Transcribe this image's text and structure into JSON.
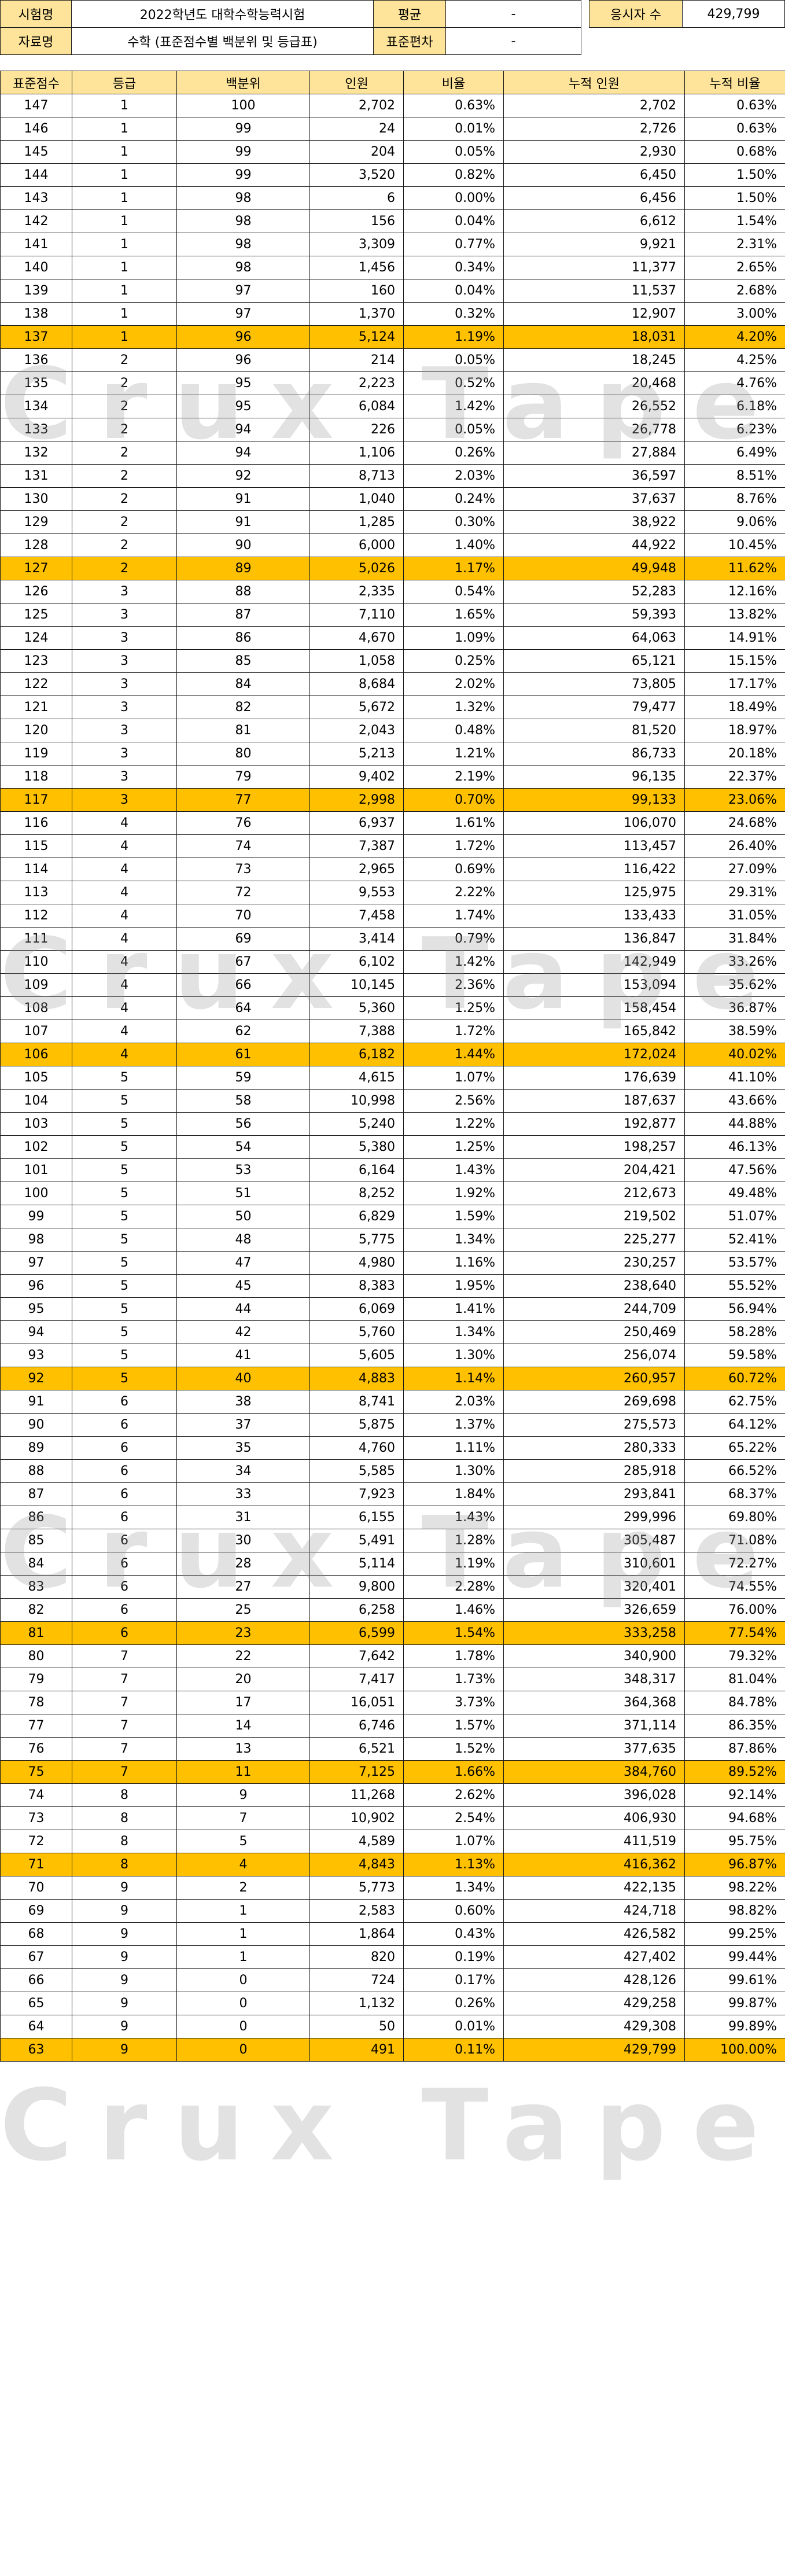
{
  "info": {
    "exam_label": "시험명",
    "exam_value": "2022학년도 대학수학능력시험",
    "mean_label": "평균",
    "mean_value": "-",
    "count_label": "응시자 수",
    "count_value": "429,799",
    "data_label": "자료명",
    "data_value": "수학 (표준점수별 백분위 및 등급표)",
    "sd_label": "표준편차",
    "sd_value": "-"
  },
  "watermark": "Crux Tape",
  "table": {
    "headers": [
      "표준점수",
      "등급",
      "백분위",
      "인원",
      "비율",
      "누적 인원",
      "누적 비율"
    ],
    "rows": [
      [
        "147",
        "1",
        "100",
        "2,702",
        "0.63%",
        "2,702",
        "0.63%"
      ],
      [
        "146",
        "1",
        "99",
        "24",
        "0.01%",
        "2,726",
        "0.63%"
      ],
      [
        "145",
        "1",
        "99",
        "204",
        "0.05%",
        "2,930",
        "0.68%"
      ],
      [
        "144",
        "1",
        "99",
        "3,520",
        "0.82%",
        "6,450",
        "1.50%"
      ],
      [
        "143",
        "1",
        "98",
        "6",
        "0.00%",
        "6,456",
        "1.50%"
      ],
      [
        "142",
        "1",
        "98",
        "156",
        "0.04%",
        "6,612",
        "1.54%"
      ],
      [
        "141",
        "1",
        "98",
        "3,309",
        "0.77%",
        "9,921",
        "2.31%"
      ],
      [
        "140",
        "1",
        "98",
        "1,456",
        "0.34%",
        "11,377",
        "2.65%"
      ],
      [
        "139",
        "1",
        "97",
        "160",
        "0.04%",
        "11,537",
        "2.68%"
      ],
      [
        "138",
        "1",
        "97",
        "1,370",
        "0.32%",
        "12,907",
        "3.00%"
      ],
      [
        "137",
        "1",
        "96",
        "5,124",
        "1.19%",
        "18,031",
        "4.20%"
      ],
      [
        "136",
        "2",
        "96",
        "214",
        "0.05%",
        "18,245",
        "4.25%"
      ],
      [
        "135",
        "2",
        "95",
        "2,223",
        "0.52%",
        "20,468",
        "4.76%"
      ],
      [
        "134",
        "2",
        "95",
        "6,084",
        "1.42%",
        "26,552",
        "6.18%"
      ],
      [
        "133",
        "2",
        "94",
        "226",
        "0.05%",
        "26,778",
        "6.23%"
      ],
      [
        "132",
        "2",
        "94",
        "1,106",
        "0.26%",
        "27,884",
        "6.49%"
      ],
      [
        "131",
        "2",
        "92",
        "8,713",
        "2.03%",
        "36,597",
        "8.51%"
      ],
      [
        "130",
        "2",
        "91",
        "1,040",
        "0.24%",
        "37,637",
        "8.76%"
      ],
      [
        "129",
        "2",
        "91",
        "1,285",
        "0.30%",
        "38,922",
        "9.06%"
      ],
      [
        "128",
        "2",
        "90",
        "6,000",
        "1.40%",
        "44,922",
        "10.45%"
      ],
      [
        "127",
        "2",
        "89",
        "5,026",
        "1.17%",
        "49,948",
        "11.62%"
      ],
      [
        "126",
        "3",
        "88",
        "2,335",
        "0.54%",
        "52,283",
        "12.16%"
      ],
      [
        "125",
        "3",
        "87",
        "7,110",
        "1.65%",
        "59,393",
        "13.82%"
      ],
      [
        "124",
        "3",
        "86",
        "4,670",
        "1.09%",
        "64,063",
        "14.91%"
      ],
      [
        "123",
        "3",
        "85",
        "1,058",
        "0.25%",
        "65,121",
        "15.15%"
      ],
      [
        "122",
        "3",
        "84",
        "8,684",
        "2.02%",
        "73,805",
        "17.17%"
      ],
      [
        "121",
        "3",
        "82",
        "5,672",
        "1.32%",
        "79,477",
        "18.49%"
      ],
      [
        "120",
        "3",
        "81",
        "2,043",
        "0.48%",
        "81,520",
        "18.97%"
      ],
      [
        "119",
        "3",
        "80",
        "5,213",
        "1.21%",
        "86,733",
        "20.18%"
      ],
      [
        "118",
        "3",
        "79",
        "9,402",
        "2.19%",
        "96,135",
        "22.37%"
      ],
      [
        "117",
        "3",
        "77",
        "2,998",
        "0.70%",
        "99,133",
        "23.06%"
      ],
      [
        "116",
        "4",
        "76",
        "6,937",
        "1.61%",
        "106,070",
        "24.68%"
      ],
      [
        "115",
        "4",
        "74",
        "7,387",
        "1.72%",
        "113,457",
        "26.40%"
      ],
      [
        "114",
        "4",
        "73",
        "2,965",
        "0.69%",
        "116,422",
        "27.09%"
      ],
      [
        "113",
        "4",
        "72",
        "9,553",
        "2.22%",
        "125,975",
        "29.31%"
      ],
      [
        "112",
        "4",
        "70",
        "7,458",
        "1.74%",
        "133,433",
        "31.05%"
      ],
      [
        "111",
        "4",
        "69",
        "3,414",
        "0.79%",
        "136,847",
        "31.84%"
      ],
      [
        "110",
        "4",
        "67",
        "6,102",
        "1.42%",
        "142,949",
        "33.26%"
      ],
      [
        "109",
        "4",
        "66",
        "10,145",
        "2.36%",
        "153,094",
        "35.62%"
      ],
      [
        "108",
        "4",
        "64",
        "5,360",
        "1.25%",
        "158,454",
        "36.87%"
      ],
      [
        "107",
        "4",
        "62",
        "7,388",
        "1.72%",
        "165,842",
        "38.59%"
      ],
      [
        "106",
        "4",
        "61",
        "6,182",
        "1.44%",
        "172,024",
        "40.02%"
      ],
      [
        "105",
        "5",
        "59",
        "4,615",
        "1.07%",
        "176,639",
        "41.10%"
      ],
      [
        "104",
        "5",
        "58",
        "10,998",
        "2.56%",
        "187,637",
        "43.66%"
      ],
      [
        "103",
        "5",
        "56",
        "5,240",
        "1.22%",
        "192,877",
        "44.88%"
      ],
      [
        "102",
        "5",
        "54",
        "5,380",
        "1.25%",
        "198,257",
        "46.13%"
      ],
      [
        "101",
        "5",
        "53",
        "6,164",
        "1.43%",
        "204,421",
        "47.56%"
      ],
      [
        "100",
        "5",
        "51",
        "8,252",
        "1.92%",
        "212,673",
        "49.48%"
      ],
      [
        "99",
        "5",
        "50",
        "6,829",
        "1.59%",
        "219,502",
        "51.07%"
      ],
      [
        "98",
        "5",
        "48",
        "5,775",
        "1.34%",
        "225,277",
        "52.41%"
      ],
      [
        "97",
        "5",
        "47",
        "4,980",
        "1.16%",
        "230,257",
        "53.57%"
      ],
      [
        "96",
        "5",
        "45",
        "8,383",
        "1.95%",
        "238,640",
        "55.52%"
      ],
      [
        "95",
        "5",
        "44",
        "6,069",
        "1.41%",
        "244,709",
        "56.94%"
      ],
      [
        "94",
        "5",
        "42",
        "5,760",
        "1.34%",
        "250,469",
        "58.28%"
      ],
      [
        "93",
        "5",
        "41",
        "5,605",
        "1.30%",
        "256,074",
        "59.58%"
      ],
      [
        "92",
        "5",
        "40",
        "4,883",
        "1.14%",
        "260,957",
        "60.72%"
      ],
      [
        "91",
        "6",
        "38",
        "8,741",
        "2.03%",
        "269,698",
        "62.75%"
      ],
      [
        "90",
        "6",
        "37",
        "5,875",
        "1.37%",
        "275,573",
        "64.12%"
      ],
      [
        "89",
        "6",
        "35",
        "4,760",
        "1.11%",
        "280,333",
        "65.22%"
      ],
      [
        "88",
        "6",
        "34",
        "5,585",
        "1.30%",
        "285,918",
        "66.52%"
      ],
      [
        "87",
        "6",
        "33",
        "7,923",
        "1.84%",
        "293,841",
        "68.37%"
      ],
      [
        "86",
        "6",
        "31",
        "6,155",
        "1.43%",
        "299,996",
        "69.80%"
      ],
      [
        "85",
        "6",
        "30",
        "5,491",
        "1.28%",
        "305,487",
        "71.08%"
      ],
      [
        "84",
        "6",
        "28",
        "5,114",
        "1.19%",
        "310,601",
        "72.27%"
      ],
      [
        "83",
        "6",
        "27",
        "9,800",
        "2.28%",
        "320,401",
        "74.55%"
      ],
      [
        "82",
        "6",
        "25",
        "6,258",
        "1.46%",
        "326,659",
        "76.00%"
      ],
      [
        "81",
        "6",
        "23",
        "6,599",
        "1.54%",
        "333,258",
        "77.54%"
      ],
      [
        "80",
        "7",
        "22",
        "7,642",
        "1.78%",
        "340,900",
        "79.32%"
      ],
      [
        "79",
        "7",
        "20",
        "7,417",
        "1.73%",
        "348,317",
        "81.04%"
      ],
      [
        "78",
        "7",
        "17",
        "16,051",
        "3.73%",
        "364,368",
        "84.78%"
      ],
      [
        "77",
        "7",
        "14",
        "6,746",
        "1.57%",
        "371,114",
        "86.35%"
      ],
      [
        "76",
        "7",
        "13",
        "6,521",
        "1.52%",
        "377,635",
        "87.86%"
      ],
      [
        "75",
        "7",
        "11",
        "7,125",
        "1.66%",
        "384,760",
        "89.52%"
      ],
      [
        "74",
        "8",
        "9",
        "11,268",
        "2.62%",
        "396,028",
        "92.14%"
      ],
      [
        "73",
        "8",
        "7",
        "10,902",
        "2.54%",
        "406,930",
        "94.68%"
      ],
      [
        "72",
        "8",
        "5",
        "4,589",
        "1.07%",
        "411,519",
        "95.75%"
      ],
      [
        "71",
        "8",
        "4",
        "4,843",
        "1.13%",
        "416,362",
        "96.87%"
      ],
      [
        "70",
        "9",
        "2",
        "5,773",
        "1.34%",
        "422,135",
        "98.22%"
      ],
      [
        "69",
        "9",
        "1",
        "2,583",
        "0.60%",
        "424,718",
        "98.82%"
      ],
      [
        "68",
        "9",
        "1",
        "1,864",
        "0.43%",
        "426,582",
        "99.25%"
      ],
      [
        "67",
        "9",
        "1",
        "820",
        "0.19%",
        "427,402",
        "99.44%"
      ],
      [
        "66",
        "9",
        "0",
        "724",
        "0.17%",
        "428,126",
        "99.61%"
      ],
      [
        "65",
        "9",
        "0",
        "1,132",
        "0.26%",
        "429,258",
        "99.87%"
      ],
      [
        "64",
        "9",
        "0",
        "50",
        "0.01%",
        "429,308",
        "99.89%"
      ],
      [
        "63",
        "9",
        "0",
        "491",
        "0.11%",
        "429,799",
        "100.00%"
      ]
    ],
    "highlight_scores": [
      "137",
      "127",
      "117",
      "106",
      "92",
      "81",
      "75",
      "71",
      "63"
    ]
  },
  "colors": {
    "label_bg": "#fde49a",
    "highlight_bg": "#ffc000",
    "border": "#1a1a1a"
  }
}
